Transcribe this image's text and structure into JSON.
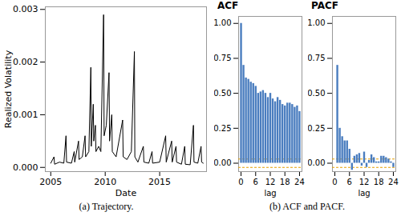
{
  "chart_data": [
    {
      "type": "line",
      "x_label": "Date",
      "y_label": "Realized Volatility",
      "color": "#000000",
      "x": [
        2005.0,
        2005.3,
        2005.35,
        2005.8,
        2006.2,
        2006.4,
        2006.45,
        2006.9,
        2007.15,
        2007.2,
        2007.55,
        2007.6,
        2007.9,
        2008.15,
        2008.2,
        2008.5,
        2008.68,
        2008.72,
        2008.9,
        2008.95,
        2009.1,
        2009.15,
        2009.4,
        2009.6,
        2009.85,
        2009.9,
        2010.1,
        2010.35,
        2010.4,
        2010.6,
        2010.65,
        2011.0,
        2011.6,
        2011.65,
        2012.0,
        2012.4,
        2012.68,
        2012.72,
        2013.0,
        2013.5,
        2013.55,
        2014.0,
        2014.3,
        2014.35,
        2015.0,
        2015.55,
        2015.6,
        2016.1,
        2016.15,
        2016.5,
        2016.55,
        2017.0,
        2017.3,
        2017.35,
        2017.8,
        2018.1,
        2018.15,
        2018.5,
        2018.8,
        2018.85,
        2019.0
      ],
      "values": [
        8e-05,
        0.0002,
        6e-05,
        0.0001,
        8e-05,
        0.0006,
        0.0001,
        8e-05,
        0.0003,
        0.0001,
        0.0005,
        0.00015,
        0.0002,
        0.0006,
        0.0002,
        0.0003,
        0.0019,
        0.0004,
        0.0012,
        0.0005,
        0.0008,
        0.0003,
        0.0004,
        0.0003,
        0.0029,
        0.0006,
        0.0008,
        0.0018,
        0.0005,
        0.001,
        0.0003,
        0.0002,
        0.0009,
        0.0002,
        0.00015,
        0.0003,
        0.0022,
        0.0002,
        0.0001,
        0.0004,
        0.0001,
        8e-05,
        0.0003,
        8e-05,
        0.0001,
        0.0006,
        0.0001,
        0.0005,
        0.0001,
        0.0004,
        0.0001,
        6e-05,
        0.0004,
        6e-05,
        5e-05,
        0.0008,
        0.0001,
        8e-05,
        0.0004,
        0.0001,
        8e-05
      ],
      "xlim": [
        2004.5,
        2019.3
      ],
      "xticks": [
        2005,
        2010,
        2015
      ],
      "ylim": [
        -8e-05,
        0.00305
      ],
      "yticks": [
        {
          "value": 0,
          "label": "0.000"
        },
        {
          "value": 0.001,
          "label": "0.001"
        },
        {
          "value": 0.002,
          "label": "0.002"
        },
        {
          "value": 0.003,
          "label": "0.003"
        }
      ]
    },
    {
      "type": "bar",
      "title": "ACF",
      "x_label": "lag",
      "color": "#4a7dbf",
      "x": [
        0,
        1,
        2,
        3,
        4,
        5,
        6,
        7,
        8,
        9,
        10,
        11,
        12,
        13,
        14,
        15,
        16,
        17,
        18,
        19,
        20,
        21,
        22,
        23,
        24
      ],
      "values": [
        1.0,
        0.7,
        0.61,
        0.6,
        0.58,
        0.57,
        0.55,
        0.5,
        0.51,
        0.52,
        0.5,
        0.47,
        0.5,
        0.46,
        0.44,
        0.47,
        0.45,
        0.42,
        0.41,
        0.43,
        0.43,
        0.42,
        0.4,
        0.41,
        0.37
      ],
      "bounds": {
        "values": [
          -0.03,
          0.03
        ],
        "color": "#e69f00",
        "line_style": "dashed"
      },
      "xlim": [
        -1,
        25
      ],
      "xticks": [
        0,
        6,
        12,
        18,
        24
      ],
      "ylim": [
        -0.06,
        1.05
      ],
      "yticks": [
        {
          "value": 0,
          "label": "0.00"
        },
        {
          "value": 0.25,
          "label": "0.25"
        },
        {
          "value": 0.5,
          "label": "0.50"
        },
        {
          "value": 0.75,
          "label": "0.75"
        },
        {
          "value": 1,
          "label": "1.00"
        }
      ]
    },
    {
      "type": "bar",
      "title": "PACF",
      "x_label": "lag",
      "color": "#4a7dbf",
      "x": [
        1,
        2,
        3,
        4,
        5,
        6,
        7,
        8,
        9,
        10,
        11,
        12,
        13,
        14,
        15,
        16,
        17,
        18,
        19,
        20,
        21,
        22,
        23,
        24
      ],
      "values": [
        0.7,
        0.25,
        0.19,
        0.16,
        0.16,
        0.1,
        -0.05,
        0.05,
        0.06,
        0.07,
        -0.02,
        0.08,
        -0.03,
        0.02,
        0.06,
        0.04,
        0.01,
        0.01,
        0.05,
        0.05,
        0.04,
        0.03,
        0.01,
        -0.03
      ],
      "bounds": {
        "values": [
          -0.03,
          0.03
        ],
        "color": "#e69f00",
        "line_style": "dashed"
      },
      "xlim": [
        -1,
        25
      ],
      "xticks": [
        0,
        6,
        12,
        18,
        24
      ],
      "ylim": [
        -0.06,
        1.05
      ],
      "yticks": [
        {
          "value": 0,
          "label": "0.00"
        },
        {
          "value": 0.25,
          "label": "0.25"
        },
        {
          "value": 0.5,
          "label": "0.50"
        },
        {
          "value": 0.75,
          "label": "0.75"
        },
        {
          "value": 1,
          "label": "1.00"
        }
      ]
    }
  ],
  "captions": [
    "(a) Trajectory.",
    "(b) ACF and PACF."
  ]
}
